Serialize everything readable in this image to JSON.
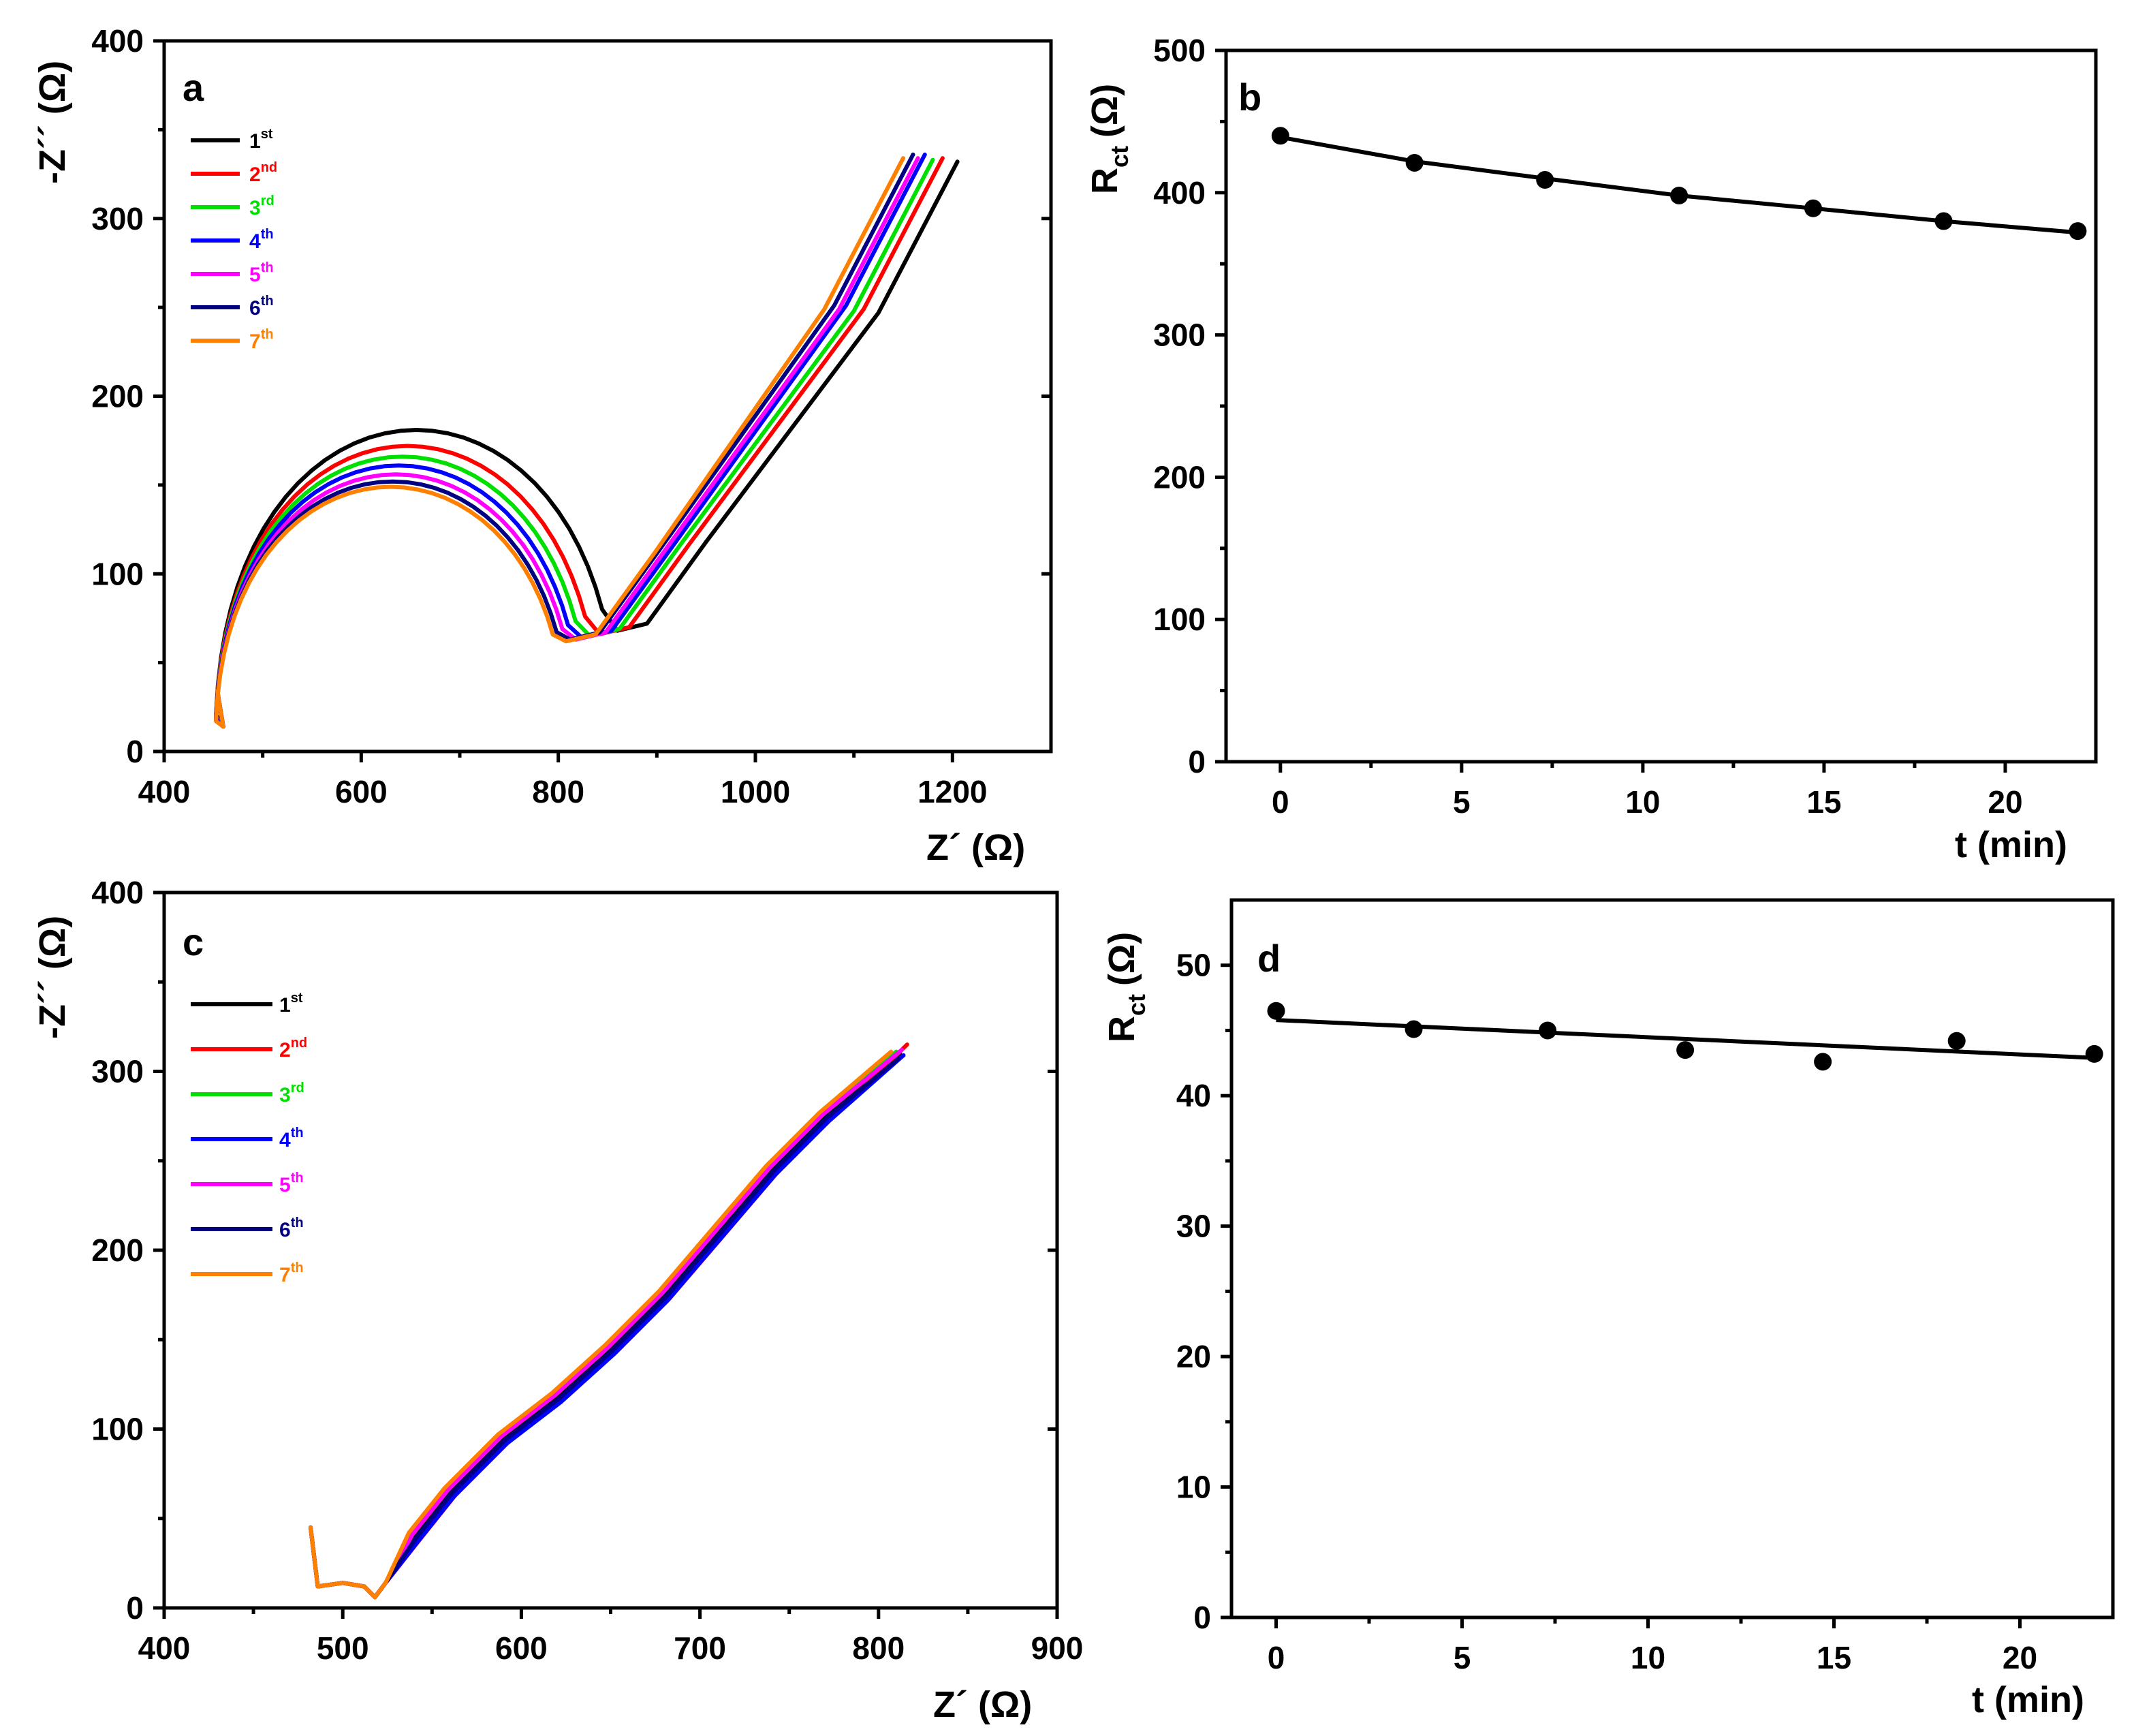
{
  "chart_data": [
    {
      "panel": "a",
      "type": "line",
      "xlabel": "Z´ (Ω)",
      "ylabel": "-Z´´ (Ω)",
      "xlim": [
        400,
        1300
      ],
      "ylim": [
        0,
        400
      ],
      "xticks": [
        400,
        600,
        800,
        1000,
        1200
      ],
      "yticks": [
        0,
        100,
        200,
        300,
        400
      ],
      "legend_position": "top-left",
      "series": [
        {
          "name": "1",
          "sup": "st",
          "color": "#000000",
          "x0": 452,
          "R": 408,
          "peak": 181,
          "minY": 68,
          "endX": 1205,
          "endY": 332
        },
        {
          "name": "2",
          "sup": "nd",
          "color": "#ff0000",
          "x0": 452,
          "R": 390,
          "peak": 172,
          "minY": 66,
          "endX": 1190,
          "endY": 334
        },
        {
          "name": "3",
          "sup": "rd",
          "color": "#00e000",
          "x0": 452,
          "R": 380,
          "peak": 166,
          "minY": 65,
          "endX": 1180,
          "endY": 333
        },
        {
          "name": "4",
          "sup": "th",
          "color": "#0000ff",
          "x0": 452,
          "R": 372,
          "peak": 161,
          "minY": 64,
          "endX": 1172,
          "endY": 336
        },
        {
          "name": "5",
          "sup": "th",
          "color": "#ff00ff",
          "x0": 452,
          "R": 366,
          "peak": 156,
          "minY": 63,
          "endX": 1165,
          "endY": 334
        },
        {
          "name": "6",
          "sup": "th",
          "color": "#000080",
          "x0": 452,
          "R": 360,
          "peak": 152,
          "minY": 63,
          "endX": 1160,
          "endY": 336
        },
        {
          "name": "7",
          "sup": "th",
          "color": "#ff8000",
          "x0": 452,
          "R": 356,
          "peak": 149,
          "minY": 62,
          "endX": 1150,
          "endY": 334
        }
      ]
    },
    {
      "panel": "b",
      "type": "scatter",
      "xlabel": "t (min)",
      "ylabel": "Rct (Ω)",
      "ylabel_main": "R",
      "ylabel_sub": "ct",
      "ylabel_unit": "(Ω)",
      "xlim": [
        -1.5,
        22.5
      ],
      "ylim": [
        0,
        500
      ],
      "xticks": [
        0,
        5,
        10,
        15,
        20
      ],
      "yticks": [
        0,
        100,
        200,
        300,
        400,
        500
      ],
      "points": {
        "x": [
          0,
          3.7,
          7.3,
          11,
          14.7,
          18.3,
          22
        ],
        "y": [
          440,
          421,
          409,
          398,
          389,
          380,
          373
        ]
      },
      "fit": {
        "x": [
          0,
          3.7,
          7.3,
          11,
          14.7,
          18.3,
          22
        ],
        "y": [
          439,
          422,
          410,
          398,
          389,
          380,
          372
        ]
      }
    },
    {
      "panel": "c",
      "type": "line",
      "xlabel": "Z´ (Ω)",
      "ylabel": "-Z´´ (Ω)",
      "xlim": [
        400,
        900
      ],
      "ylim": [
        0,
        400
      ],
      "xticks": [
        400,
        500,
        600,
        700,
        800,
        900
      ],
      "yticks": [
        0,
        100,
        200,
        300,
        400
      ],
      "legend_position": "top-left",
      "series": [
        {
          "name": "1",
          "sup": "st",
          "color": "#000000",
          "offset": 0,
          "dy": 0,
          "endX": 812,
          "endY": 310
        },
        {
          "name": "2",
          "sup": "nd",
          "color": "#ff0000",
          "offset": 3,
          "dy": -2,
          "endX": 816,
          "endY": 315
        },
        {
          "name": "3",
          "sup": "rd",
          "color": "#00e000",
          "offset": -2,
          "dy": 1,
          "endX": 810,
          "endY": 311
        },
        {
          "name": "4",
          "sup": "th",
          "color": "#0000ff",
          "offset": 2,
          "dy": -3,
          "endX": 814,
          "endY": 309
        },
        {
          "name": "5",
          "sup": "th",
          "color": "#ff00ff",
          "offset": -1,
          "dy": 1,
          "endX": 813,
          "endY": 312
        },
        {
          "name": "6",
          "sup": "th",
          "color": "#000080",
          "offset": 1,
          "dy": -1,
          "endX": 811,
          "endY": 307
        },
        {
          "name": "7",
          "sup": "th",
          "color": "#ff8000",
          "offset": -3,
          "dy": 2,
          "endX": 807,
          "endY": 311
        }
      ]
    },
    {
      "panel": "d",
      "type": "scatter",
      "xlabel": "t (min)",
      "ylabel": "Rct (Ω)",
      "ylabel_main": "R",
      "ylabel_sub": "ct",
      "ylabel_unit": "(Ω)",
      "xlim": [
        -1.2,
        22.5
      ],
      "ylim": [
        0,
        55
      ],
      "xticks": [
        0,
        5,
        10,
        15,
        20
      ],
      "yticks": [
        0,
        10,
        20,
        30,
        40,
        50
      ],
      "points": {
        "x": [
          0,
          3.7,
          7.3,
          11,
          14.7,
          18.3,
          22
        ],
        "y": [
          46.5,
          45.1,
          45.0,
          43.5,
          42.6,
          44.2,
          43.2
        ]
      },
      "fit": {
        "x": [
          0,
          22
        ],
        "y": [
          45.8,
          42.9
        ]
      }
    }
  ]
}
